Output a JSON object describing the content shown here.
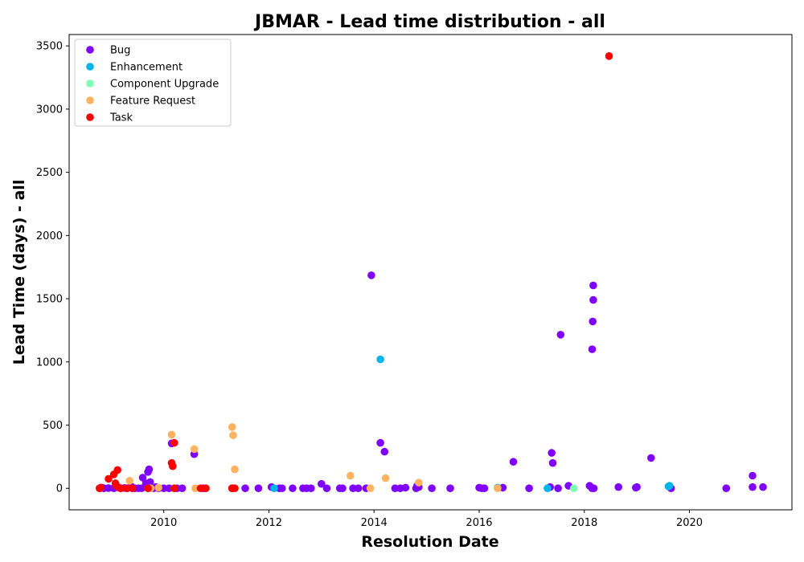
{
  "chart_data": {
    "type": "scatter",
    "title": "JBMAR - Lead time distribution - all",
    "xlabel": "Resolution Date",
    "ylabel": "Lead Time (days) - all",
    "xlim": [
      2008.2,
      2021.95
    ],
    "ylim": [
      -170,
      3590
    ],
    "x_ticks": [
      "2010",
      "2012",
      "2014",
      "2016",
      "2018",
      "2020"
    ],
    "y_ticks": [
      "0",
      "500",
      "1000",
      "1500",
      "2000",
      "2500",
      "3000",
      "3500"
    ],
    "grid": false,
    "legend_position": "top-left",
    "series": [
      {
        "name": "Bug",
        "color": "#8000ff",
        "points": [
          [
            2008.78,
            0
          ],
          [
            2008.82,
            5
          ],
          [
            2008.86,
            0
          ],
          [
            2008.95,
            2
          ],
          [
            2009.05,
            0
          ],
          [
            2009.12,
            10
          ],
          [
            2009.18,
            0
          ],
          [
            2009.25,
            3
          ],
          [
            2009.3,
            0
          ],
          [
            2009.38,
            15
          ],
          [
            2009.45,
            0
          ],
          [
            2009.52,
            0
          ],
          [
            2009.58,
            0
          ],
          [
            2009.6,
            85
          ],
          [
            2009.66,
            40
          ],
          [
            2009.7,
            130
          ],
          [
            2009.72,
            150
          ],
          [
            2009.74,
            50
          ],
          [
            2009.8,
            0
          ],
          [
            2009.85,
            10
          ],
          [
            2009.9,
            0
          ],
          [
            2010.0,
            0
          ],
          [
            2010.1,
            0
          ],
          [
            2010.15,
            355
          ],
          [
            2010.25,
            0
          ],
          [
            2010.35,
            0
          ],
          [
            2010.58,
            270
          ],
          [
            2010.75,
            0
          ],
          [
            2011.3,
            0
          ],
          [
            2011.55,
            0
          ],
          [
            2011.8,
            0
          ],
          [
            2012.05,
            10
          ],
          [
            2012.2,
            0
          ],
          [
            2012.25,
            0
          ],
          [
            2012.45,
            0
          ],
          [
            2012.65,
            0
          ],
          [
            2012.72,
            0
          ],
          [
            2012.8,
            0
          ],
          [
            2013.0,
            35
          ],
          [
            2013.1,
            0
          ],
          [
            2013.35,
            0
          ],
          [
            2013.4,
            0
          ],
          [
            2013.6,
            0
          ],
          [
            2013.7,
            0
          ],
          [
            2013.85,
            0
          ],
          [
            2013.95,
            1685
          ],
          [
            2014.12,
            360
          ],
          [
            2014.2,
            290
          ],
          [
            2014.4,
            0
          ],
          [
            2014.5,
            0
          ],
          [
            2014.6,
            5
          ],
          [
            2014.8,
            0
          ],
          [
            2014.82,
            20
          ],
          [
            2014.85,
            10
          ],
          [
            2015.1,
            0
          ],
          [
            2015.45,
            0
          ],
          [
            2016.0,
            5
          ],
          [
            2016.05,
            0
          ],
          [
            2016.1,
            0
          ],
          [
            2016.45,
            5
          ],
          [
            2016.65,
            210
          ],
          [
            2016.95,
            0
          ],
          [
            2017.35,
            10
          ],
          [
            2017.38,
            280
          ],
          [
            2017.4,
            200
          ],
          [
            2017.5,
            0
          ],
          [
            2017.55,
            1215
          ],
          [
            2017.7,
            20
          ],
          [
            2018.1,
            20
          ],
          [
            2018.15,
            0
          ],
          [
            2018.15,
            1100
          ],
          [
            2018.16,
            1320
          ],
          [
            2018.17,
            1490
          ],
          [
            2018.17,
            1605
          ],
          [
            2018.18,
            0
          ],
          [
            2018.65,
            10
          ],
          [
            2018.98,
            5
          ],
          [
            2019.0,
            10
          ],
          [
            2019.27,
            240
          ],
          [
            2019.65,
            0
          ],
          [
            2020.7,
            0
          ],
          [
            2021.2,
            100
          ],
          [
            2021.2,
            10
          ],
          [
            2021.4,
            10
          ]
        ]
      },
      {
        "name": "Enhancement",
        "color": "#00b5eb",
        "points": [
          [
            2012.1,
            0
          ],
          [
            2014.12,
            1020
          ],
          [
            2016.35,
            5
          ],
          [
            2017.3,
            0
          ],
          [
            2019.6,
            15
          ],
          [
            2019.62,
            20
          ]
        ]
      },
      {
        "name": "Component Upgrade",
        "color": "#80ffb4",
        "points": [
          [
            2017.8,
            0
          ]
        ]
      },
      {
        "name": "Feature Request",
        "color": "#ffb360",
        "points": [
          [
            2009.35,
            60
          ],
          [
            2009.75,
            0
          ],
          [
            2009.9,
            5
          ],
          [
            2010.15,
            425
          ],
          [
            2010.2,
            0
          ],
          [
            2010.58,
            310
          ],
          [
            2010.6,
            0
          ],
          [
            2011.3,
            485
          ],
          [
            2011.32,
            420
          ],
          [
            2011.35,
            150
          ],
          [
            2013.55,
            100
          ],
          [
            2013.93,
            0
          ],
          [
            2014.22,
            80
          ],
          [
            2014.85,
            45
          ],
          [
            2016.35,
            0
          ]
        ]
      },
      {
        "name": "Task",
        "color": "#ff0000",
        "points": [
          [
            2008.78,
            0
          ],
          [
            2008.8,
            5
          ],
          [
            2008.95,
            75
          ],
          [
            2009.05,
            110
          ],
          [
            2009.08,
            40
          ],
          [
            2009.1,
            20
          ],
          [
            2009.12,
            145
          ],
          [
            2009.15,
            5
          ],
          [
            2009.18,
            0
          ],
          [
            2009.3,
            0
          ],
          [
            2009.4,
            0
          ],
          [
            2009.7,
            0
          ],
          [
            2010.15,
            200
          ],
          [
            2010.17,
            175
          ],
          [
            2010.2,
            360
          ],
          [
            2010.2,
            0
          ],
          [
            2010.7,
            0
          ],
          [
            2010.8,
            0
          ],
          [
            2011.3,
            0
          ],
          [
            2011.35,
            0
          ],
          [
            2018.47,
            3420
          ]
        ]
      }
    ]
  }
}
